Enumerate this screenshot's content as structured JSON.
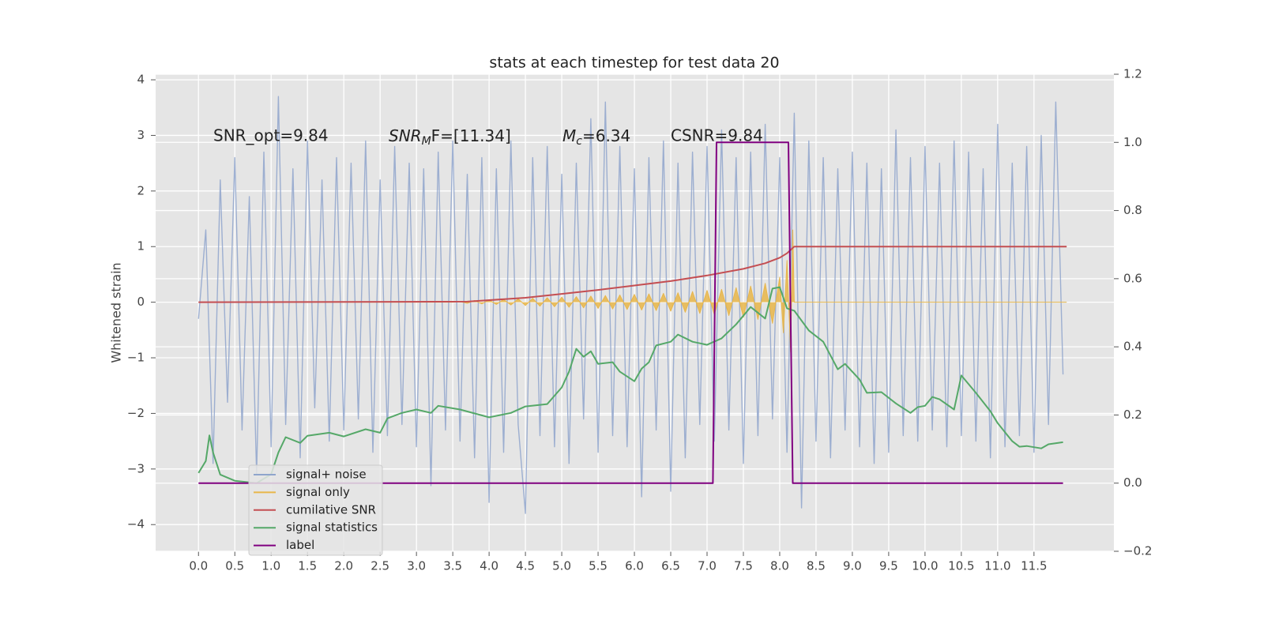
{
  "chart_data": {
    "type": "line",
    "title": "stats at each timestep for test data 20",
    "ylabel": "Whitened strain",
    "xlim": [
      -0.59,
      12.6
    ],
    "ylim": [
      -4.48,
      4.1
    ],
    "y2lim": [
      -0.2,
      1.2
    ],
    "xticks": [
      {
        "value": 0,
        "label": "0.0"
      },
      0.5,
      {
        "value": 1,
        "label": "1.0"
      },
      1.5,
      {
        "value": 2,
        "label": "2.0"
      },
      2.5,
      {
        "value": 3,
        "label": "3.0"
      },
      3.5,
      {
        "value": 4,
        "label": "4.0"
      },
      4.5,
      {
        "value": 5,
        "label": "5.0"
      },
      5.5,
      {
        "value": 6,
        "label": "6.0"
      },
      6.5,
      {
        "value": 7,
        "label": "7.0"
      },
      7.5,
      {
        "value": 8,
        "label": "8.0"
      },
      8.5,
      {
        "value": 9,
        "label": "9.0"
      },
      9.5,
      {
        "value": 10,
        "label": "10.0"
      },
      10.5,
      {
        "value": 11,
        "label": "11.0"
      },
      11.5
    ],
    "yticks": [
      {
        "value": -4,
        "label": "−4"
      },
      {
        "value": -3,
        "label": "−3"
      },
      {
        "value": -2,
        "label": "−2"
      },
      {
        "value": -1,
        "label": "−1"
      },
      0,
      1,
      2,
      3,
      4
    ],
    "y2ticks": [
      {
        "value": -0.2,
        "label": "−0.2"
      },
      {
        "value": 0,
        "label": "0.0"
      },
      0.2,
      0.4,
      0.6,
      0.8,
      {
        "value": 1,
        "label": "1.0"
      },
      1.2
    ],
    "grid": true,
    "legend": "lower left",
    "annotations": [
      {
        "text": "SNR_opt=9.84"
      },
      {
        "main": "SNR",
        "sub": "M",
        "rest": "F=[11.34]"
      },
      {
        "main": "M",
        "sub": "c",
        "rest": "=6.34"
      },
      {
        "text": "CSNR=9.84"
      }
    ],
    "series": [
      {
        "name": "signal+ noise",
        "color": "#8fa5cc",
        "x": [
          0,
          0.1,
          0.2,
          0.3,
          0.4,
          0.5,
          0.6,
          0.7,
          0.8,
          0.9,
          1,
          1.1,
          1.2,
          1.3,
          1.4,
          1.5,
          1.6,
          1.7,
          1.8,
          1.9,
          2,
          2.1,
          2.2,
          2.3,
          2.4,
          2.5,
          2.6,
          2.7,
          2.8,
          2.9,
          3,
          3.1,
          3.2,
          3.3,
          3.4,
          3.5,
          3.6,
          3.7,
          3.8,
          3.9,
          4,
          4.1,
          4.2,
          4.3,
          4.4,
          4.5,
          4.6,
          4.7,
          4.8,
          4.9,
          5,
          5.1,
          5.2,
          5.3,
          5.4,
          5.5,
          5.6,
          5.7,
          5.8,
          5.9,
          6,
          6.1,
          6.2,
          6.3,
          6.4,
          6.5,
          6.6,
          6.7,
          6.8,
          6.9,
          7,
          7.1,
          7.2,
          7.3,
          7.4,
          7.5,
          7.6,
          7.7,
          7.8,
          7.9,
          8,
          8.1,
          8.2,
          8.3,
          8.4,
          8.5,
          8.6,
          8.7,
          8.8,
          8.9,
          9,
          9.1,
          9.2,
          9.3,
          9.4,
          9.5,
          9.6,
          9.7,
          9.8,
          9.9,
          10,
          10.1,
          10.2,
          10.3,
          10.4,
          10.5,
          10.6,
          10.7,
          10.8,
          10.9,
          11,
          11.1,
          11.2,
          11.3,
          11.4,
          11.5,
          11.6,
          11.7,
          11.8,
          11.9
        ],
        "values": [
          -0.3,
          1.3,
          -2.9,
          2.2,
          -1.8,
          2.6,
          -2.3,
          1.9,
          -3.1,
          2.7,
          -2.6,
          3.7,
          -2.2,
          2.4,
          -2.8,
          2.9,
          -1.9,
          2.2,
          -2.5,
          2.6,
          -2.3,
          2.5,
          -2.1,
          2.9,
          -2.7,
          2.2,
          -2.4,
          2.8,
          -2.2,
          2.5,
          -2.6,
          2.4,
          -3.3,
          2.7,
          -2.3,
          2.9,
          -2.5,
          2.3,
          -2.8,
          2.6,
          -3.6,
          2.4,
          -2.7,
          2.9,
          -2.2,
          -3.8,
          2.6,
          -2.4,
          2.8,
          -2.6,
          2.3,
          -2.9,
          2.5,
          -2.1,
          3.3,
          -2.7,
          3.6,
          -2.4,
          2.8,
          -2.6,
          2.4,
          -3.5,
          2.6,
          -2.3,
          2.9,
          -3.4,
          2.5,
          -2.8,
          2.7,
          -2.2,
          2.8,
          -2.5,
          3.1,
          -2.3,
          2.6,
          -2.9,
          2.7,
          -2.4,
          3.2,
          -2.1,
          2.6,
          -2.7,
          3.4,
          -3.7,
          2.9,
          -2.5,
          2.6,
          -2.8,
          2.4,
          -2.3,
          2.7,
          -2.6,
          2.5,
          -2.9,
          2.4,
          -2.7,
          3.1,
          -2.4,
          2.6,
          -2.5,
          2.8,
          -2.3,
          2.5,
          -2.6,
          2.9,
          -2.4,
          2.7,
          -2.5,
          2.4,
          -2.8,
          3.2,
          -2.6,
          2.5,
          -2.4,
          2.8,
          -2.7,
          3.0,
          -2.2,
          3.6,
          -1.3
        ]
      },
      {
        "name": "signal only",
        "color": "#e8b64a",
        "fill": true,
        "x": [
          0,
          3.5,
          3.6,
          3.7,
          3.8,
          3.9,
          4,
          4.1,
          4.2,
          4.3,
          4.4,
          4.5,
          4.6,
          4.7,
          4.8,
          4.9,
          5,
          5.1,
          5.2,
          5.3,
          5.4,
          5.5,
          5.6,
          5.7,
          5.8,
          5.9,
          6,
          6.1,
          6.2,
          6.3,
          6.4,
          6.5,
          6.6,
          6.7,
          6.8,
          6.9,
          7,
          7.1,
          7.2,
          7.3,
          7.4,
          7.5,
          7.6,
          7.7,
          7.8,
          7.9,
          8,
          8.05,
          8.1,
          8.15,
          8.18,
          8.2,
          11.95
        ],
        "values": [
          0,
          0,
          0.01,
          -0.02,
          0.03,
          -0.03,
          0.04,
          -0.04,
          0.05,
          -0.05,
          0.06,
          -0.06,
          0.07,
          -0.07,
          0.08,
          -0.08,
          0.09,
          -0.09,
          0.1,
          -0.1,
          0.11,
          -0.11,
          0.12,
          -0.12,
          0.13,
          -0.13,
          0.14,
          -0.14,
          0.15,
          -0.15,
          0.16,
          -0.16,
          0.17,
          -0.18,
          0.19,
          -0.2,
          0.21,
          -0.22,
          0.23,
          -0.24,
          0.26,
          -0.27,
          0.29,
          -0.31,
          0.34,
          -0.38,
          0.45,
          -0.55,
          0.75,
          -0.9,
          1.3,
          0,
          0
        ]
      },
      {
        "name": "cumilative SNR",
        "color": "#c44e52",
        "x": [
          0,
          3.7,
          4.5,
          5,
          5.5,
          6,
          6.5,
          7,
          7.5,
          7.8,
          8,
          8.1,
          8.2,
          11.95
        ],
        "values": [
          0,
          0.01,
          0.08,
          0.15,
          0.22,
          0.3,
          0.38,
          0.48,
          0.6,
          0.7,
          0.8,
          0.88,
          1,
          1
        ]
      },
      {
        "name": "signal statistics",
        "color": "#55a868",
        "axis": "y2",
        "x": [
          0,
          0.1,
          0.15,
          0.2,
          0.3,
          0.5,
          0.8,
          1,
          1.1,
          1.2,
          1.4,
          1.5,
          1.8,
          2,
          2.3,
          2.5,
          2.6,
          2.8,
          3,
          3.2,
          3.3,
          3.6,
          4,
          4.3,
          4.5,
          4.8,
          5,
          5.1,
          5.2,
          5.3,
          5.4,
          5.5,
          5.7,
          5.8,
          6,
          6.1,
          6.2,
          6.3,
          6.5,
          6.6,
          6.8,
          7,
          7.2,
          7.4,
          7.6,
          7.8,
          7.9,
          8,
          8.1,
          8.2,
          8.4,
          8.6,
          8.8,
          8.9,
          9.1,
          9.2,
          9.4,
          9.6,
          9.8,
          9.9,
          10,
          10.1,
          10.2,
          10.4,
          10.5,
          10.7,
          10.9,
          11,
          11.2,
          11.3,
          11.4,
          11.6,
          11.7,
          11.9
        ],
        "values": [
          0.03,
          0.065,
          0.14,
          0.09,
          0.025,
          0.007,
          0,
          0.026,
          0.09,
          0.135,
          0.118,
          0.139,
          0.148,
          0.137,
          0.158,
          0.148,
          0.19,
          0.206,
          0.216,
          0.206,
          0.227,
          0.216,
          0.193,
          0.206,
          0.225,
          0.232,
          0.281,
          0.327,
          0.394,
          0.371,
          0.387,
          0.35,
          0.355,
          0.327,
          0.299,
          0.336,
          0.355,
          0.404,
          0.415,
          0.436,
          0.415,
          0.406,
          0.425,
          0.466,
          0.517,
          0.483,
          0.571,
          0.575,
          0.513,
          0.506,
          0.448,
          0.415,
          0.334,
          0.35,
          0.304,
          0.265,
          0.267,
          0.234,
          0.206,
          0.223,
          0.227,
          0.253,
          0.246,
          0.216,
          0.316,
          0.265,
          0.211,
          0.176,
          0.123,
          0.107,
          0.109,
          0.102,
          0.114,
          0.12
        ]
      },
      {
        "name": "label",
        "color": "#800080",
        "axis": "y2",
        "x": [
          0,
          7.08,
          7.13,
          8.12,
          8.18,
          11.9
        ],
        "values": [
          0,
          0,
          1,
          1,
          0,
          0
        ]
      }
    ]
  }
}
